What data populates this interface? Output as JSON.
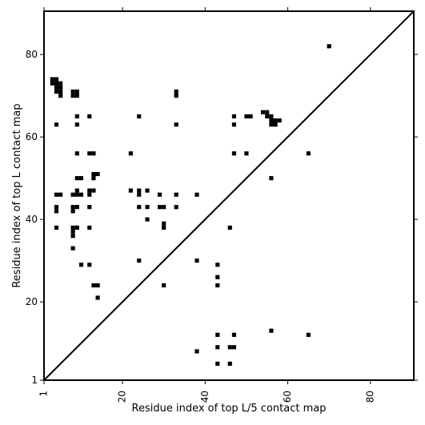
{
  "chart_data": {
    "type": "scatter",
    "title": "",
    "xlabel": "Residue index of top L/5 contact map",
    "ylabel": "Residue index of top L contact map",
    "xlim": [
      1,
      90.5
    ],
    "ylim": [
      1,
      90.5
    ],
    "xticks": [
      1,
      20,
      40,
      60,
      80
    ],
    "yticks": [
      1,
      20,
      40,
      60,
      80
    ],
    "grid": false,
    "legend": "none",
    "marker_color": "#000000",
    "diagonal_line": true,
    "series": [
      {
        "values": [
          [
            3,
            73
          ],
          [
            3,
            74
          ],
          [
            4,
            73
          ],
          [
            4,
            74
          ],
          [
            4,
            71
          ],
          [
            4,
            72
          ],
          [
            5,
            71
          ],
          [
            5,
            72
          ],
          [
            5,
            73
          ],
          [
            5,
            70
          ],
          [
            8,
            70
          ],
          [
            8,
            71
          ],
          [
            9,
            70
          ],
          [
            9,
            71
          ],
          [
            4,
            63
          ],
          [
            4,
            46
          ],
          [
            5,
            46
          ],
          [
            4,
            42
          ],
          [
            4,
            43
          ],
          [
            4,
            38
          ],
          [
            8,
            46
          ],
          [
            8,
            43
          ],
          [
            8,
            42
          ],
          [
            8,
            38
          ],
          [
            8,
            37
          ],
          [
            8,
            36
          ],
          [
            8,
            33
          ],
          [
            9,
            65
          ],
          [
            9,
            63
          ],
          [
            9,
            56
          ],
          [
            9,
            50
          ],
          [
            9,
            47
          ],
          [
            9,
            46
          ],
          [
            9,
            43
          ],
          [
            9,
            38
          ],
          [
            10,
            50
          ],
          [
            10,
            46
          ],
          [
            10,
            29
          ],
          [
            12,
            65
          ],
          [
            12,
            56
          ],
          [
            12,
            47
          ],
          [
            12,
            46
          ],
          [
            12,
            43
          ],
          [
            12,
            38
          ],
          [
            12,
            29
          ],
          [
            13,
            56
          ],
          [
            13,
            51
          ],
          [
            13,
            50
          ],
          [
            13,
            47
          ],
          [
            13,
            24
          ],
          [
            14,
            51
          ],
          [
            14,
            24
          ],
          [
            14,
            21
          ],
          [
            22,
            56
          ],
          [
            22,
            47
          ],
          [
            24,
            65
          ],
          [
            24,
            47
          ],
          [
            24,
            46
          ],
          [
            24,
            43
          ],
          [
            24,
            30
          ],
          [
            26,
            47
          ],
          [
            26,
            43
          ],
          [
            26,
            40
          ],
          [
            29,
            46
          ],
          [
            29,
            43
          ],
          [
            30,
            43
          ],
          [
            30,
            39
          ],
          [
            30,
            38
          ],
          [
            30,
            24
          ],
          [
            33,
            71
          ],
          [
            33,
            70
          ],
          [
            33,
            63
          ],
          [
            33,
            46
          ],
          [
            33,
            43
          ],
          [
            38,
            46
          ],
          [
            38,
            30
          ],
          [
            38,
            8
          ],
          [
            43,
            29
          ],
          [
            43,
            26
          ],
          [
            43,
            24
          ],
          [
            43,
            12
          ],
          [
            43,
            9
          ],
          [
            43,
            5
          ],
          [
            46,
            38
          ],
          [
            46,
            9
          ],
          [
            46,
            5
          ],
          [
            47,
            65
          ],
          [
            47,
            63
          ],
          [
            47,
            56
          ],
          [
            47,
            12
          ],
          [
            47,
            9
          ],
          [
            50,
            65
          ],
          [
            50,
            56
          ],
          [
            51,
            65
          ],
          [
            54,
            66
          ],
          [
            55,
            66
          ],
          [
            55,
            65
          ],
          [
            56,
            65
          ],
          [
            56,
            64
          ],
          [
            56,
            63
          ],
          [
            56,
            50
          ],
          [
            56,
            13
          ],
          [
            57,
            64
          ],
          [
            57,
            63
          ],
          [
            58,
            64
          ],
          [
            65,
            56
          ],
          [
            65,
            12
          ],
          [
            70,
            82
          ]
        ]
      }
    ]
  }
}
